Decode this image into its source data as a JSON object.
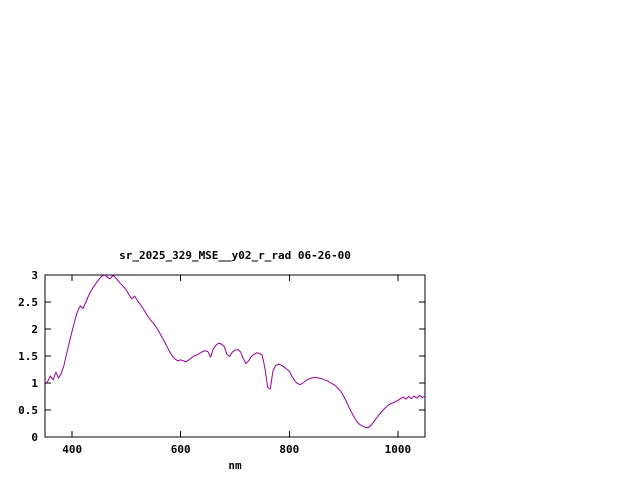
{
  "page": {
    "background": "#ffffff"
  },
  "chart_data": {
    "type": "line",
    "title": "sr_2025_329_MSE__y02_r_rad 06-26-00",
    "xlabel": "nm",
    "ylabel": "",
    "xlim": [
      350,
      1050
    ],
    "ylim": [
      0,
      3
    ],
    "xticks": [
      400,
      600,
      800,
      1000
    ],
    "yticks": [
      0,
      0.5,
      1,
      1.5,
      2,
      2.5,
      3
    ],
    "grid": false,
    "legend": "none",
    "line_color": "#990099",
    "series": [
      {
        "name": "sr_2025_329_MSE__y02_r_rad",
        "points": [
          [
            350,
            0.97
          ],
          [
            355,
            1.03
          ],
          [
            360,
            1.13
          ],
          [
            365,
            1.06
          ],
          [
            370,
            1.2
          ],
          [
            375,
            1.09
          ],
          [
            380,
            1.18
          ],
          [
            385,
            1.33
          ],
          [
            390,
            1.55
          ],
          [
            395,
            1.76
          ],
          [
            400,
            1.96
          ],
          [
            405,
            2.16
          ],
          [
            410,
            2.33
          ],
          [
            415,
            2.43
          ],
          [
            420,
            2.38
          ],
          [
            425,
            2.49
          ],
          [
            430,
            2.61
          ],
          [
            435,
            2.71
          ],
          [
            440,
            2.79
          ],
          [
            445,
            2.86
          ],
          [
            450,
            2.93
          ],
          [
            455,
            2.98
          ],
          [
            460,
            3.0
          ],
          [
            465,
            2.96
          ],
          [
            470,
            2.93
          ],
          [
            475,
            2.99
          ],
          [
            480,
            2.95
          ],
          [
            485,
            2.89
          ],
          [
            490,
            2.83
          ],
          [
            495,
            2.78
          ],
          [
            500,
            2.72
          ],
          [
            505,
            2.63
          ],
          [
            510,
            2.56
          ],
          [
            515,
            2.61
          ],
          [
            520,
            2.53
          ],
          [
            525,
            2.46
          ],
          [
            530,
            2.39
          ],
          [
            535,
            2.31
          ],
          [
            540,
            2.23
          ],
          [
            545,
            2.16
          ],
          [
            550,
            2.1
          ],
          [
            555,
            2.03
          ],
          [
            560,
            1.95
          ],
          [
            565,
            1.86
          ],
          [
            570,
            1.77
          ],
          [
            575,
            1.67
          ],
          [
            580,
            1.57
          ],
          [
            585,
            1.49
          ],
          [
            590,
            1.44
          ],
          [
            595,
            1.41
          ],
          [
            600,
            1.43
          ],
          [
            605,
            1.41
          ],
          [
            610,
            1.39
          ],
          [
            615,
            1.43
          ],
          [
            620,
            1.47
          ],
          [
            625,
            1.5
          ],
          [
            630,
            1.52
          ],
          [
            635,
            1.55
          ],
          [
            640,
            1.58
          ],
          [
            645,
            1.6
          ],
          [
            650,
            1.58
          ],
          [
            655,
            1.48
          ],
          [
            660,
            1.63
          ],
          [
            665,
            1.7
          ],
          [
            670,
            1.74
          ],
          [
            675,
            1.72
          ],
          [
            680,
            1.68
          ],
          [
            685,
            1.53
          ],
          [
            690,
            1.49
          ],
          [
            695,
            1.57
          ],
          [
            700,
            1.61
          ],
          [
            705,
            1.62
          ],
          [
            710,
            1.58
          ],
          [
            715,
            1.46
          ],
          [
            720,
            1.36
          ],
          [
            725,
            1.41
          ],
          [
            730,
            1.49
          ],
          [
            735,
            1.53
          ],
          [
            740,
            1.56
          ],
          [
            745,
            1.55
          ],
          [
            750,
            1.52
          ],
          [
            755,
            1.28
          ],
          [
            760,
            0.92
          ],
          [
            765,
            0.89
          ],
          [
            770,
            1.23
          ],
          [
            775,
            1.32
          ],
          [
            780,
            1.35
          ],
          [
            785,
            1.33
          ],
          [
            790,
            1.3
          ],
          [
            795,
            1.26
          ],
          [
            800,
            1.22
          ],
          [
            805,
            1.12
          ],
          [
            810,
            1.04
          ],
          [
            815,
            0.99
          ],
          [
            820,
            0.97
          ],
          [
            825,
            1.0
          ],
          [
            830,
            1.04
          ],
          [
            835,
            1.07
          ],
          [
            840,
            1.09
          ],
          [
            845,
            1.1
          ],
          [
            850,
            1.1
          ],
          [
            855,
            1.09
          ],
          [
            860,
            1.08
          ],
          [
            865,
            1.06
          ],
          [
            870,
            1.04
          ],
          [
            875,
            1.01
          ],
          [
            880,
            0.98
          ],
          [
            885,
            0.95
          ],
          [
            890,
            0.9
          ],
          [
            895,
            0.84
          ],
          [
            900,
            0.76
          ],
          [
            905,
            0.66
          ],
          [
            910,
            0.55
          ],
          [
            915,
            0.45
          ],
          [
            920,
            0.36
          ],
          [
            925,
            0.28
          ],
          [
            930,
            0.23
          ],
          [
            935,
            0.2
          ],
          [
            940,
            0.18
          ],
          [
            945,
            0.17
          ],
          [
            950,
            0.21
          ],
          [
            955,
            0.27
          ],
          [
            960,
            0.34
          ],
          [
            965,
            0.41
          ],
          [
            970,
            0.47
          ],
          [
            975,
            0.52
          ],
          [
            980,
            0.57
          ],
          [
            985,
            0.61
          ],
          [
            990,
            0.63
          ],
          [
            995,
            0.65
          ],
          [
            1000,
            0.68
          ],
          [
            1005,
            0.71
          ],
          [
            1010,
            0.74
          ],
          [
            1015,
            0.7
          ],
          [
            1020,
            0.75
          ],
          [
            1025,
            0.71
          ],
          [
            1030,
            0.76
          ],
          [
            1035,
            0.72
          ],
          [
            1040,
            0.77
          ],
          [
            1045,
            0.73
          ],
          [
            1050,
            0.76
          ]
        ]
      }
    ]
  }
}
